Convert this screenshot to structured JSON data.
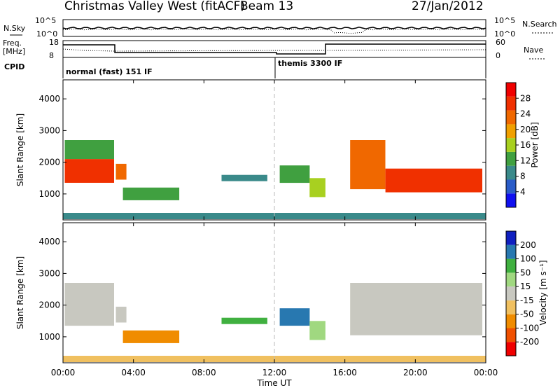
{
  "header": {
    "title": "Christmas Valley West (fitACF)",
    "beam": "Beam 13",
    "date": "27/Jan/2012"
  },
  "side_labels": {
    "nsky": "N.Sky",
    "freq": "Freq.",
    "freq_unit": "[MHz]",
    "cpid": "CPID",
    "nsearch": "N.Search",
    "nave": "Nave"
  },
  "mini_axes": {
    "noise_left_ticks": [
      "10^5",
      "10^0"
    ],
    "noise_right_ticks": [
      "10^5",
      "10^0"
    ],
    "freq_ticks": [
      "18",
      "8"
    ],
    "nave_ticks": [
      "60",
      "0"
    ]
  },
  "cpid_segments": [
    {
      "label": "normal (fast) 151 IF",
      "start_hour": 0,
      "end_hour": 12.0
    },
    {
      "label": "themis 3300 IF",
      "start_hour": 12.0,
      "end_hour": 24
    }
  ],
  "colors": {
    "power_scale": [
      "#1010f0",
      "#2a5cc8",
      "#3a8a8a",
      "#40a040",
      "#a8d020",
      "#f0a000",
      "#f06800",
      "#f03000",
      "#f00000"
    ],
    "velocity_scale": [
      "#f00000",
      "#f05000",
      "#f08c00",
      "#f0c060",
      "#c8c8c0",
      "#a0d880",
      "#40b040",
      "#2878b0",
      "#1020c0"
    ]
  },
  "chart_data": [
    {
      "type": "heatmap",
      "name": "Power",
      "ylabel": "Slant Range [km]",
      "xlabel": "Time UT",
      "xlim": [
        0,
        24
      ],
      "ylim": [
        180,
        4600
      ],
      "x_ticks": [
        "00:00",
        "04:00",
        "08:00",
        "12:00",
        "16:00",
        "20:00",
        "00:00"
      ],
      "y_ticks": [
        1000,
        2000,
        3000,
        4000
      ],
      "colorbar": {
        "label": "Power [dB]",
        "ticks": [
          4,
          8,
          12,
          16,
          20,
          24,
          28
        ],
        "range": [
          0,
          32
        ]
      },
      "regions": [
        {
          "t0": 0.1,
          "t1": 2.9,
          "r0": 1350,
          "r1": 2100,
          "value": 26
        },
        {
          "t0": 0.1,
          "t1": 2.9,
          "r0": 2100,
          "r1": 2700,
          "value": 14
        },
        {
          "t0": 3.0,
          "t1": 3.6,
          "r0": 1450,
          "r1": 1950,
          "value": 22
        },
        {
          "t0": 3.4,
          "t1": 6.6,
          "r0": 800,
          "r1": 1200,
          "value": 12
        },
        {
          "t0": 9.0,
          "t1": 11.6,
          "r0": 1400,
          "r1": 1600,
          "value": 9
        },
        {
          "t0": 12.3,
          "t1": 14.0,
          "r0": 1350,
          "r1": 1900,
          "value": 11
        },
        {
          "t0": 14.0,
          "t1": 14.9,
          "r0": 900,
          "r1": 1500,
          "value": 16
        },
        {
          "t0": 16.3,
          "t1": 18.3,
          "r0": 1150,
          "r1": 2700,
          "value": 22
        },
        {
          "t0": 18.3,
          "t1": 23.8,
          "r0": 1050,
          "r1": 1800,
          "value": 25
        },
        {
          "t0": 0.0,
          "t1": 24.0,
          "r0": 200,
          "r1": 400,
          "value": 10
        }
      ]
    },
    {
      "type": "heatmap",
      "name": "Velocity",
      "ylabel": "Slant Range [km]",
      "xlabel": "Time UT",
      "xlim": [
        0,
        24
      ],
      "ylim": [
        180,
        4600
      ],
      "x_ticks": [
        "00:00",
        "04:00",
        "08:00",
        "12:00",
        "16:00",
        "20:00",
        "00:00"
      ],
      "y_ticks": [
        1000,
        2000,
        3000,
        4000
      ],
      "colorbar": {
        "label": "Velocity [m s⁻¹]",
        "ticks": [
          -200,
          -100,
          -50,
          -15,
          15,
          50,
          100,
          200
        ]
      },
      "regions": [
        {
          "t0": 0.1,
          "t1": 2.9,
          "r0": 1350,
          "r1": 2700,
          "value": 0
        },
        {
          "t0": 3.0,
          "t1": 3.6,
          "r0": 1450,
          "r1": 1950,
          "value": 0
        },
        {
          "t0": 3.4,
          "t1": 6.6,
          "r0": 800,
          "r1": 1200,
          "value": -70
        },
        {
          "t0": 9.0,
          "t1": 11.6,
          "r0": 1400,
          "r1": 1600,
          "value": 60
        },
        {
          "t0": 12.3,
          "t1": 14.0,
          "r0": 1350,
          "r1": 1900,
          "value": 120
        },
        {
          "t0": 14.0,
          "t1": 14.9,
          "r0": 900,
          "r1": 1500,
          "value": 40
        },
        {
          "t0": 16.3,
          "t1": 23.8,
          "r0": 1050,
          "r1": 2700,
          "value": 0
        },
        {
          "t0": 0.0,
          "t1": 24.0,
          "r0": 200,
          "r1": 400,
          "value": -40
        }
      ]
    }
  ]
}
